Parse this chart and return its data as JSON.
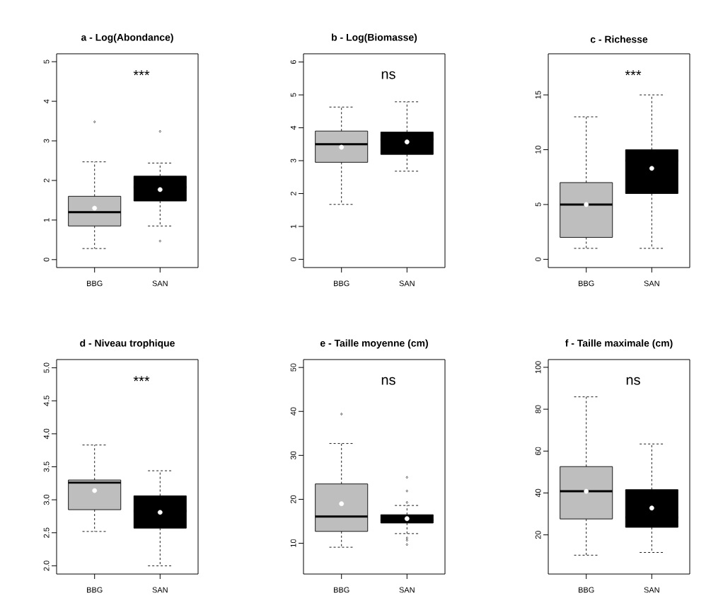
{
  "chart_data": [
    {
      "type": "box",
      "title": "a - Log(Abondance)",
      "categories": [
        "BBG",
        "SAN"
      ],
      "colors": [
        "#bebebe",
        "#000000"
      ],
      "ylim": [
        -0.2,
        5.2
      ],
      "yticks": [
        0,
        1,
        2,
        3,
        4,
        5
      ],
      "annotations": [
        "***"
      ],
      "boxes": [
        {
          "low": 0.28,
          "q1": 0.85,
          "median": 1.2,
          "q3": 1.6,
          "high": 2.47,
          "mean": 1.3,
          "outliers": [
            3.48
          ]
        },
        {
          "low": 0.85,
          "q1": 1.48,
          "median": 1.83,
          "q3": 2.11,
          "high": 2.44,
          "mean": 1.77,
          "outliers": [
            3.24,
            0.47
          ]
        }
      ]
    },
    {
      "type": "box",
      "title": "b - Log(Biomasse)",
      "categories": [
        "BBG",
        "SAN"
      ],
      "colors": [
        "#bebebe",
        "#000000"
      ],
      "ylim": [
        -0.25,
        6.25
      ],
      "yticks": [
        0,
        1,
        2,
        3,
        4,
        5,
        6
      ],
      "annotations": [
        "ns"
      ],
      "boxes": [
        {
          "low": 1.67,
          "q1": 2.95,
          "median": 3.5,
          "q3": 3.9,
          "high": 4.63,
          "mean": 3.41
        },
        {
          "low": 2.68,
          "q1": 3.19,
          "median": 3.65,
          "q3": 3.87,
          "high": 4.79,
          "mean": 3.57
        }
      ]
    },
    {
      "type": "box",
      "title": "c - Richesse",
      "categories": [
        "BBG",
        "SAN"
      ],
      "colors": [
        "#bebebe",
        "#000000"
      ],
      "ylim": [
        -0.75,
        18.75
      ],
      "yticks": [
        0,
        5,
        10,
        15
      ],
      "annotations": [
        "***"
      ],
      "boxes": [
        {
          "low": 1,
          "q1": 2,
          "median": 5,
          "q3": 7,
          "high": 13,
          "mean": 5
        },
        {
          "low": 1,
          "q1": 6,
          "median": 9,
          "q3": 10,
          "high": 15,
          "mean": 8.3
        }
      ]
    },
    {
      "type": "box",
      "title": "d - Niveau trophique",
      "categories": [
        "BBG",
        "SAN"
      ],
      "colors": [
        "#bebebe",
        "#000000"
      ],
      "ylim": [
        1.875,
        5.125
      ],
      "yticks": [
        {
          "value": 2,
          "label": "2.0"
        },
        {
          "value": 2.5,
          "label": "2.5"
        },
        {
          "value": 3,
          "label": "3.0"
        },
        {
          "value": 3.5,
          "label": "3.5"
        },
        {
          "value": 4,
          "label": "4.0"
        },
        {
          "value": 4.5,
          "label": "4.5"
        },
        {
          "value": 5,
          "label": "5.0"
        }
      ],
      "annotations": [
        "***"
      ],
      "boxes": [
        {
          "low": 2.52,
          "q1": 2.85,
          "median": 3.26,
          "q3": 3.3,
          "high": 3.83,
          "mean": 3.14
        },
        {
          "low": 2.0,
          "q1": 2.57,
          "median": 2.83,
          "q3": 3.06,
          "high": 3.44,
          "mean": 2.81
        }
      ]
    },
    {
      "type": "box",
      "title": "e - Taille moyenne (cm)",
      "categories": [
        "BBG",
        "SAN"
      ],
      "colors": [
        "#bebebe",
        "#000000"
      ],
      "ylim": [
        3,
        51.8
      ],
      "yticks": [
        10,
        20,
        30,
        40,
        50
      ],
      "annotations": [
        "ns"
      ],
      "boxes": [
        {
          "low": 9.1,
          "q1": 12.7,
          "median": 16.1,
          "q3": 23.5,
          "high": 32.7,
          "mean": 19,
          "outliers": [
            39.4
          ]
        },
        {
          "low": 12.2,
          "q1": 14.6,
          "median": 15.3,
          "q3": 16.5,
          "high": 18.6,
          "mean": 15.6,
          "outliers": [
            25,
            21.9,
            19.3,
            11.2,
            10.7,
            9.7
          ]
        }
      ]
    },
    {
      "type": "box",
      "title": "f - Taille maximale (cm)",
      "categories": [
        "BBG",
        "SAN"
      ],
      "colors": [
        "#bebebe",
        "#000000"
      ],
      "ylim": [
        1.3,
        103.7
      ],
      "yticks": [
        20,
        40,
        60,
        80,
        100
      ],
      "annotations": [
        "ns"
      ],
      "boxes": [
        {
          "low": 10.3,
          "q1": 27.6,
          "median": 40.8,
          "q3": 52.6,
          "high": 85.9,
          "mean": 40.8
        },
        {
          "low": 11.6,
          "q1": 23.6,
          "median": 28.3,
          "q3": 41.6,
          "high": 63.4,
          "mean": 32.8
        }
      ]
    }
  ]
}
